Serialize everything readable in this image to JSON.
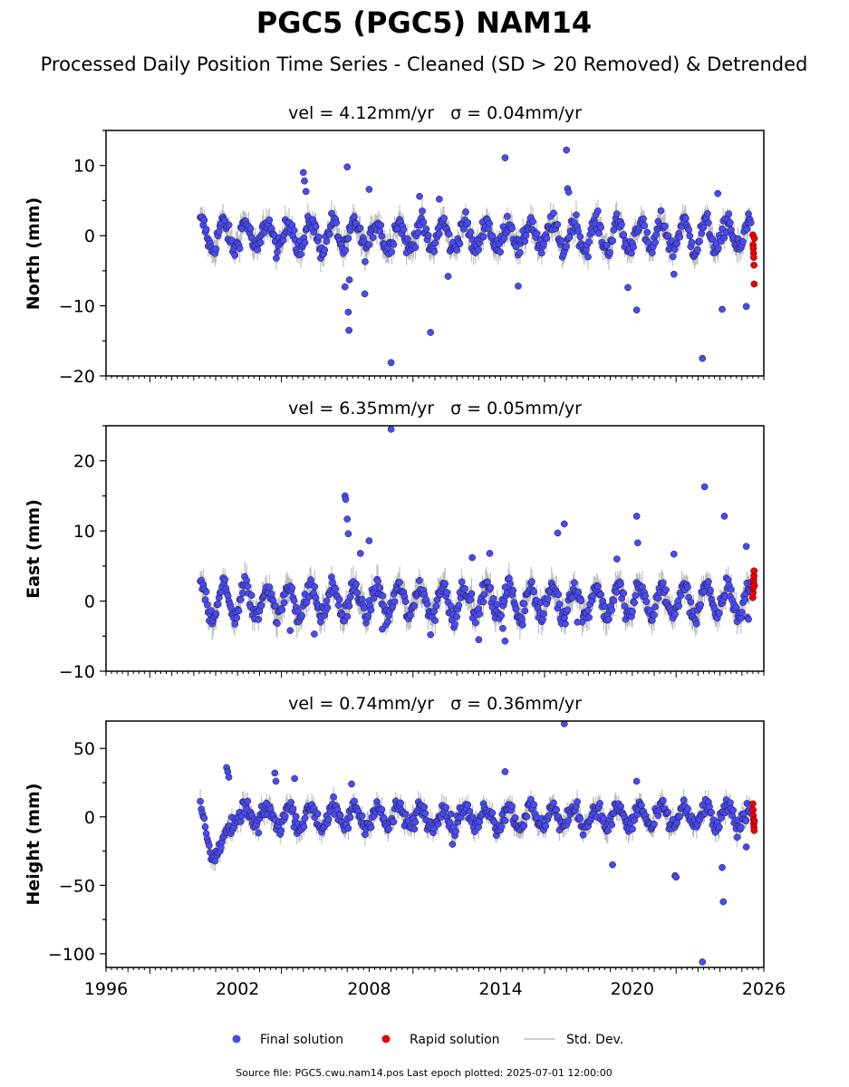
{
  "figure": {
    "title": "PGC5 (PGC5) NAM14",
    "subtitle": "Processed Daily Position Time Series - Cleaned (SD > 20 Removed) & Detrended",
    "footer": "Source file: PGC5.cwu.nam14.pos  Last epoch plotted: 2025-07-01 12:00:00"
  },
  "colors": {
    "final": "#4a4af2",
    "final_edge": "#1a1a33",
    "rapid": "#ee0000",
    "stddev": "#bbbbbb",
    "axis": "#000000"
  },
  "legend": {
    "placement": "bottom-center",
    "items": [
      {
        "label": "Final solution",
        "color": "#4a4af2"
      },
      {
        "label": "Rapid solution",
        "color": "#ee0000"
      },
      {
        "label": "Std. Dev.",
        "color": "#bbbbbb"
      }
    ]
  },
  "chart_data": [
    {
      "type": "scatter",
      "ylabel": "North (mm)",
      "vel_text": "vel = 4.12mm/yr",
      "sigma_text": "σ = 0.04mm/yr",
      "xlim": [
        1996,
        2026
      ],
      "ylim": [
        -20,
        15
      ],
      "yticks": [
        10,
        0,
        -10,
        -20
      ],
      "yticklabels": [
        "10",
        "0",
        "−10",
        "−20"
      ],
      "xticks": [],
      "xticklabels": [],
      "amplitude": 2.0,
      "noise": 1.0,
      "err": 1.6,
      "rapid": [
        0.1,
        -1.3,
        -1.8,
        -2.5,
        -3.1,
        -4.2,
        -6.9,
        -0.4
      ],
      "outliers": [
        [
          2005.0,
          9.0
        ],
        [
          2005.05,
          7.8
        ],
        [
          2005.12,
          6.3
        ],
        [
          2007.0,
          9.8
        ],
        [
          2007.05,
          -10.9
        ],
        [
          2007.08,
          -13.5
        ],
        [
          2006.9,
          -7.3
        ],
        [
          2007.1,
          -6.3
        ],
        [
          2008.0,
          6.6
        ],
        [
          2007.8,
          -8.3
        ],
        [
          2009.0,
          -18.1
        ],
        [
          2010.3,
          5.6
        ],
        [
          2010.8,
          -13.8
        ],
        [
          2011.2,
          5.2
        ],
        [
          2011.6,
          -5.8
        ],
        [
          2014.2,
          11.1
        ],
        [
          2014.8,
          -7.2
        ],
        [
          2017.0,
          12.2
        ],
        [
          2017.05,
          6.7
        ],
        [
          2017.1,
          6.2
        ],
        [
          2019.8,
          -7.4
        ],
        [
          2020.2,
          -10.6
        ],
        [
          2021.9,
          -5.5
        ],
        [
          2023.2,
          -17.5
        ],
        [
          2023.9,
          6.0
        ],
        [
          2024.1,
          -10.5
        ],
        [
          2024.4,
          3.1
        ],
        [
          2025.2,
          -10.1
        ],
        [
          2025.3,
          3.1
        ]
      ]
    },
    {
      "type": "scatter",
      "ylabel": "East (mm)",
      "vel_text": "vel = 6.35mm/yr",
      "sigma_text": "σ = 0.05mm/yr",
      "xlim": [
        1996,
        2026
      ],
      "ylim": [
        -10,
        25
      ],
      "yticks": [
        20,
        10,
        0,
        -10
      ],
      "yticklabels": [
        "20",
        "10",
        "0",
        "−10"
      ],
      "xticks": [],
      "xticklabels": [],
      "amplitude": 2.2,
      "noise": 1.0,
      "err": 1.8,
      "rapid": [
        0.5,
        1.2,
        1.9,
        2.6,
        3.0,
        3.6,
        4.3,
        2.2
      ],
      "outliers": [
        [
          2004.4,
          -4.2
        ],
        [
          2005.5,
          -4.7
        ],
        [
          2006.9,
          15.0
        ],
        [
          2006.93,
          14.5
        ],
        [
          2007.0,
          11.7
        ],
        [
          2007.05,
          9.6
        ],
        [
          2007.6,
          6.8
        ],
        [
          2008.0,
          8.6
        ],
        [
          2008.6,
          -4.0
        ],
        [
          2009.0,
          24.5
        ],
        [
          2010.8,
          -4.8
        ],
        [
          2012.7,
          6.2
        ],
        [
          2013.0,
          -5.5
        ],
        [
          2013.5,
          6.8
        ],
        [
          2014.1,
          -3.9
        ],
        [
          2014.2,
          -5.7
        ],
        [
          2015.0,
          -3.4
        ],
        [
          2016.6,
          9.7
        ],
        [
          2016.9,
          11.0
        ],
        [
          2017.5,
          -3.0
        ],
        [
          2019.3,
          6.0
        ],
        [
          2020.2,
          12.1
        ],
        [
          2020.25,
          8.3
        ],
        [
          2021.9,
          6.7
        ],
        [
          2023.3,
          16.3
        ],
        [
          2024.2,
          12.1
        ],
        [
          2025.2,
          7.8
        ],
        [
          2025.25,
          -2.3
        ],
        [
          2025.3,
          -2.6
        ]
      ]
    },
    {
      "type": "scatter",
      "ylabel": "Height (mm)",
      "vel_text": "vel = 0.74mm/yr",
      "sigma_text": "σ = 0.36mm/yr",
      "xlim": [
        1996,
        2026
      ],
      "ylim": [
        -110,
        70
      ],
      "yticks": [
        50,
        0,
        -50,
        -100
      ],
      "yticklabels": [
        "50",
        "0",
        "−50",
        "−100"
      ],
      "xticks": [
        1996,
        2002,
        2008,
        2014,
        2020,
        2026
      ],
      "xticklabels": [
        "1996",
        "2002",
        "2008",
        "2014",
        "2020",
        "2026"
      ],
      "amplitude": 7.5,
      "noise": 4.5,
      "err": 7.0,
      "rapid": [
        9.5,
        5.0,
        1.0,
        -2.0,
        -5.0,
        -7.5,
        -10.0,
        -3.0
      ],
      "outliers": [
        [
          2001.5,
          36.0
        ],
        [
          2001.55,
          33.0
        ],
        [
          2001.6,
          29.0
        ],
        [
          2003.7,
          32.0
        ],
        [
          2003.75,
          26.0
        ],
        [
          2004.6,
          28.0
        ],
        [
          2007.2,
          24.0
        ],
        [
          2011.8,
          -20.0
        ],
        [
          2014.2,
          33.0
        ],
        [
          2016.9,
          68.0
        ],
        [
          2019.1,
          -35.0
        ],
        [
          2020.2,
          26.0
        ],
        [
          2021.95,
          -43.0
        ],
        [
          2022.0,
          -44.0
        ],
        [
          2023.2,
          -106.0
        ],
        [
          2024.1,
          -37.0
        ],
        [
          2024.15,
          -62.0
        ],
        [
          2025.2,
          -22.0
        ]
      ]
    }
  ]
}
